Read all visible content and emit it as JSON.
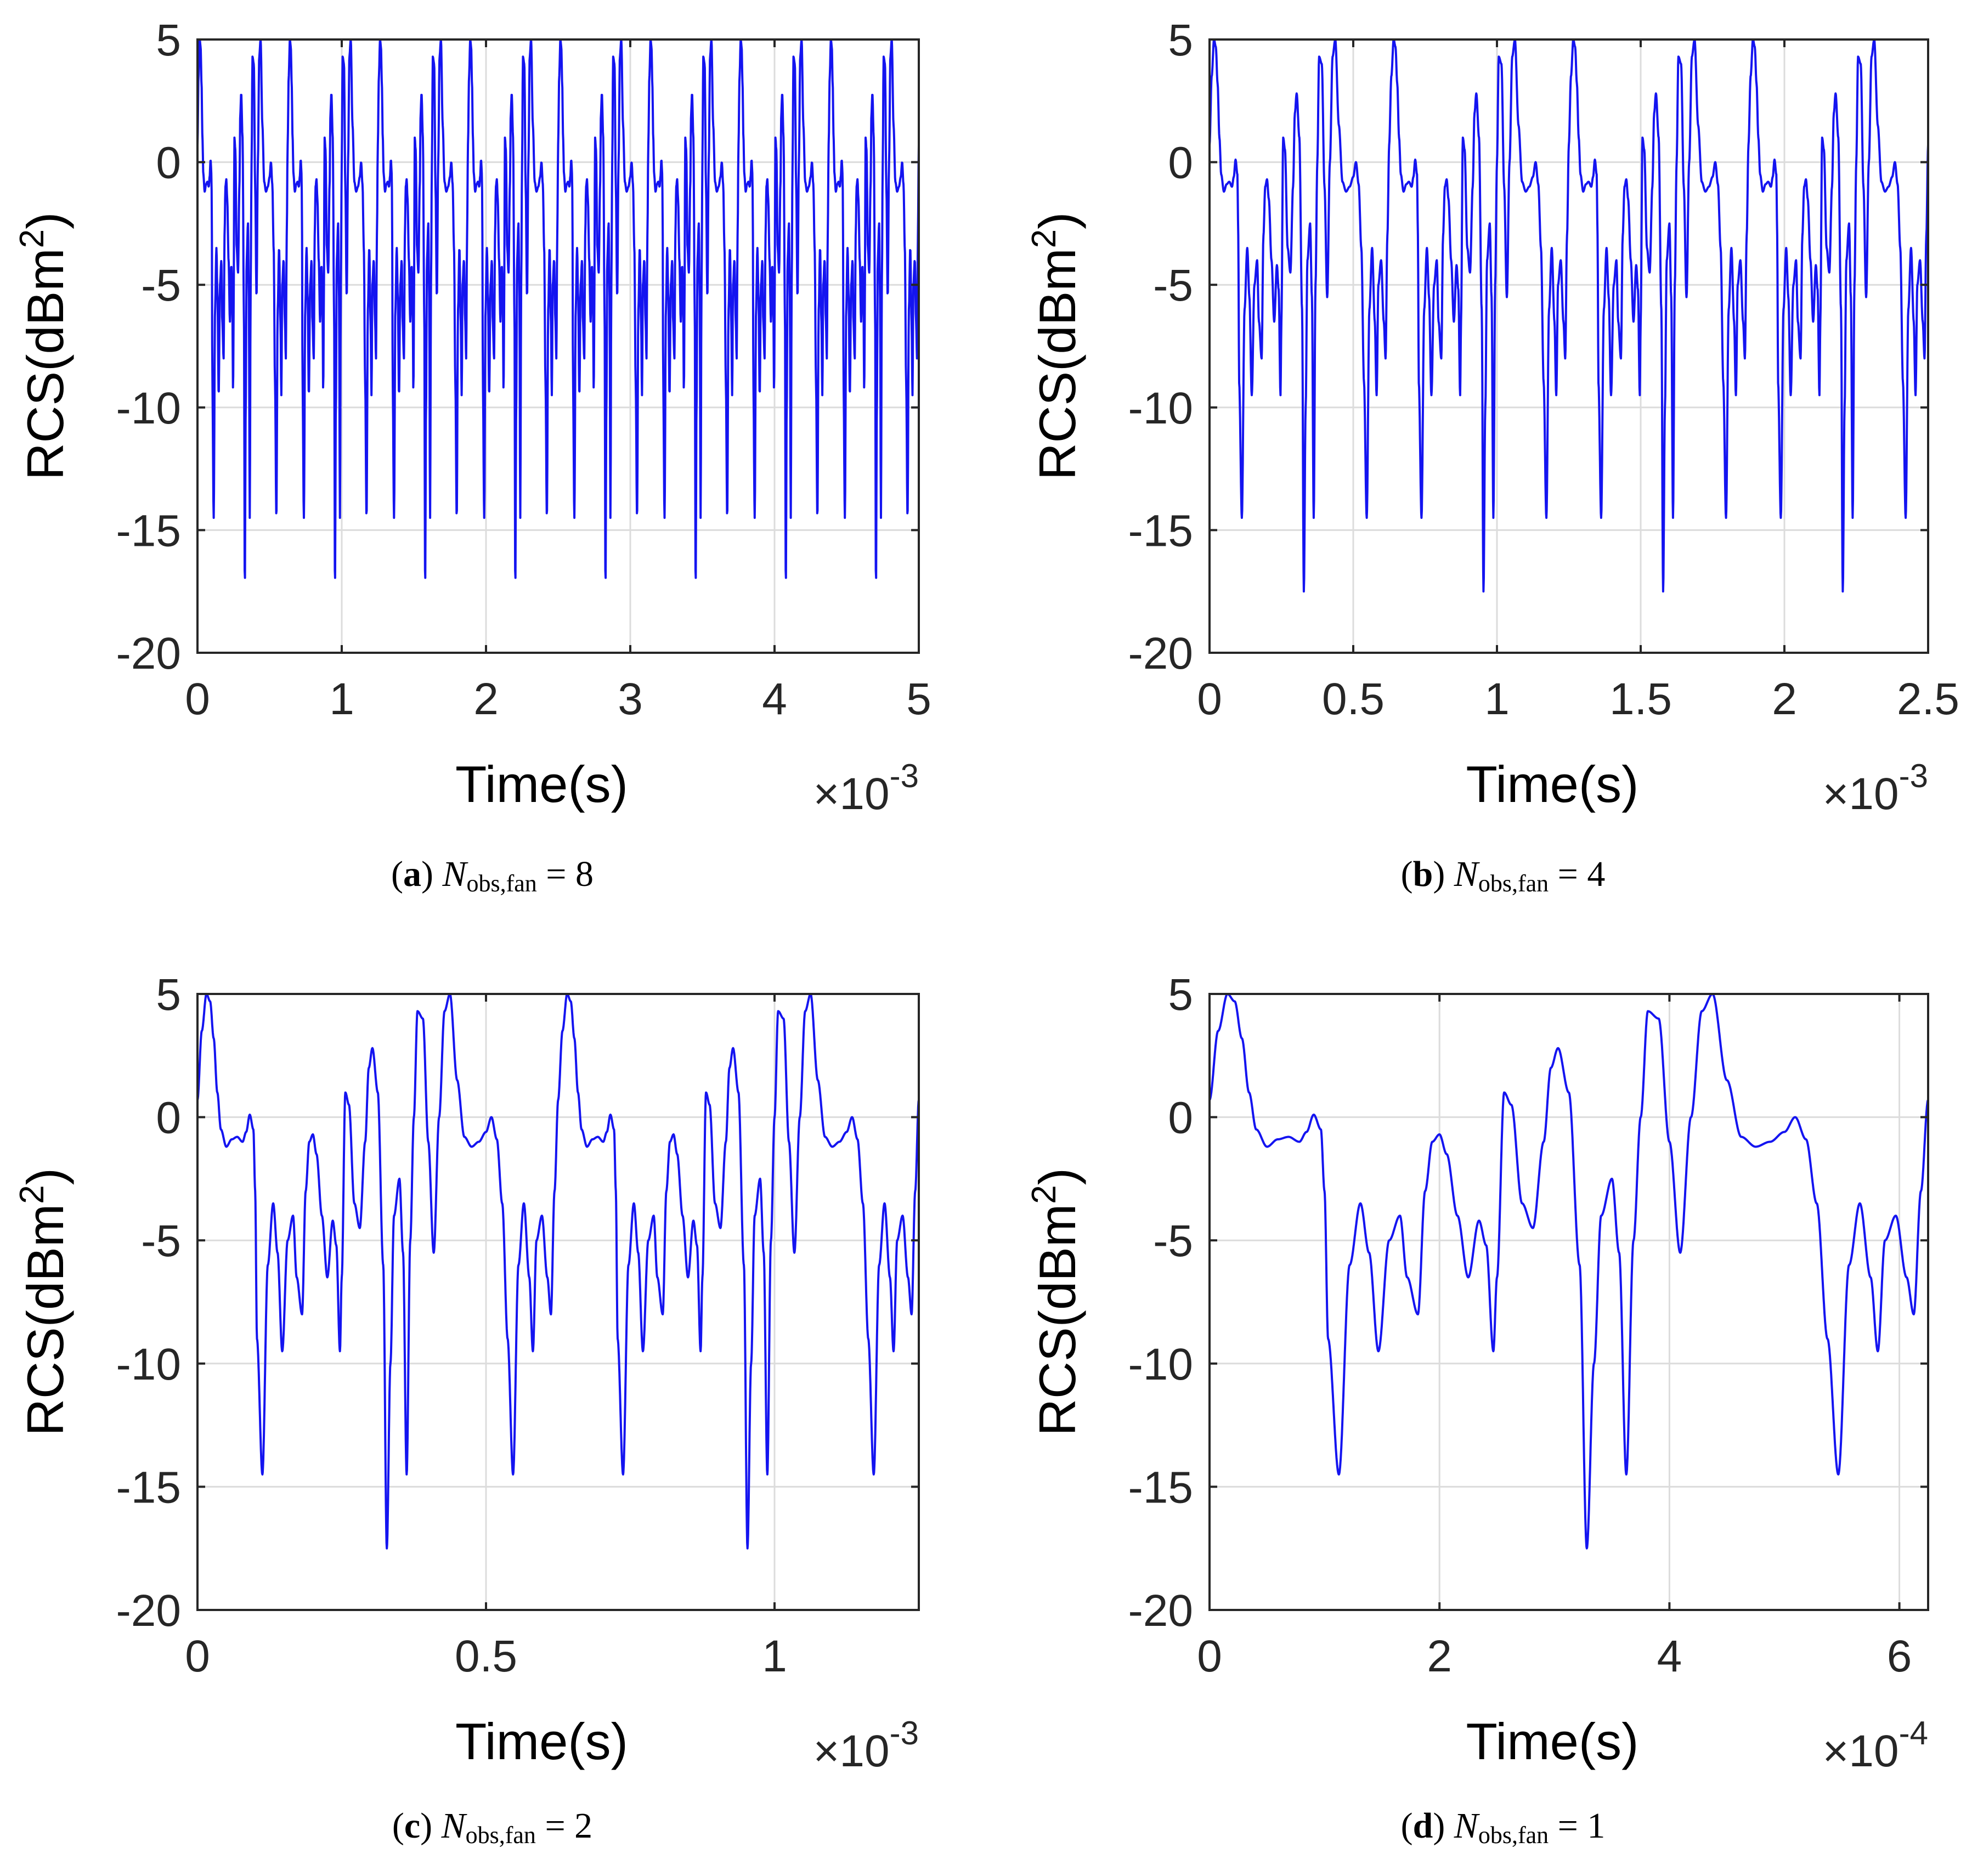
{
  "chart_data": [
    {
      "type": "line",
      "panel": "a",
      "caption": {
        "letter": "a",
        "var": "N",
        "sub": "obs,fan",
        "eq": " = 8"
      },
      "xlabel": "Time(s)",
      "ylabel": "RCS(dBm2)",
      "ylabel_parts": {
        "base": "RCS(dBm",
        "sup": "2",
        "end": ")"
      },
      "x_multiplier": {
        "base": "×10",
        "exp": "-3"
      },
      "xlim": [
        0,
        5
      ],
      "ylim": [
        -20,
        5
      ],
      "xticks": [
        0,
        1,
        2,
        3,
        4,
        5
      ],
      "xtick_labels": [
        "0",
        "1",
        "2",
        "3",
        "4",
        "5"
      ],
      "yticks": [
        5,
        0,
        -5,
        -10,
        -15,
        -20
      ],
      "ytick_labels": [
        "5",
        "0",
        "-5",
        "-10",
        "-15",
        "-20"
      ],
      "grid": true,
      "series": [
        {
          "period": 0.625,
          "color": "#1414f0"
        }
      ]
    },
    {
      "type": "line",
      "panel": "b",
      "caption": {
        "letter": "b",
        "var": "N",
        "sub": "obs,fan",
        "eq": " = 4"
      },
      "xlabel": "Time(s)",
      "ylabel": "RCS(dBm2)",
      "ylabel_parts": {
        "base": "RCS(dBm",
        "sup": "2",
        "end": ")"
      },
      "x_multiplier": {
        "base": "×10",
        "exp": "-3"
      },
      "xlim": [
        0,
        2.5
      ],
      "ylim": [
        -20,
        5
      ],
      "xticks": [
        0,
        0.5,
        1,
        1.5,
        2,
        2.5
      ],
      "xtick_labels": [
        "0",
        "0.5",
        "1",
        "1.5",
        "2",
        "2.5"
      ],
      "yticks": [
        5,
        0,
        -5,
        -10,
        -15,
        -20
      ],
      "ytick_labels": [
        "5",
        "0",
        "-5",
        "-10",
        "-15",
        "-20"
      ],
      "grid": true,
      "series": [
        {
          "period": 0.625,
          "color": "#1414f0"
        }
      ]
    },
    {
      "type": "line",
      "panel": "c",
      "caption": {
        "letter": "c",
        "var": "N",
        "sub": "obs,fan",
        "eq": " = 2"
      },
      "xlabel": "Time(s)",
      "ylabel": "RCS(dBm2)",
      "ylabel_parts": {
        "base": "RCS(dBm",
        "sup": "2",
        "end": ")"
      },
      "x_multiplier": {
        "base": "×10",
        "exp": "-3"
      },
      "xlim": [
        0,
        1.25
      ],
      "ylim": [
        -20,
        5
      ],
      "xticks": [
        0,
        0.5,
        1
      ],
      "xtick_labels": [
        "0",
        "0.5",
        "1"
      ],
      "yticks": [
        5,
        0,
        -5,
        -10,
        -15,
        -20
      ],
      "ytick_labels": [
        "5",
        "0",
        "-5",
        "-10",
        "-15",
        "-20"
      ],
      "grid": true,
      "series": [
        {
          "period": 0.625,
          "color": "#1414f0"
        }
      ]
    },
    {
      "type": "line",
      "panel": "d",
      "caption": {
        "letter": "d",
        "var": "N",
        "sub": "obs,fan",
        "eq": " = 1"
      },
      "xlabel": "Time(s)",
      "ylabel": "RCS(dBm2)",
      "ylabel_parts": {
        "base": "RCS(dBm",
        "sup": "2",
        "end": ")"
      },
      "x_multiplier": {
        "base": "×10",
        "exp": "-4"
      },
      "xlim": [
        0,
        6.25
      ],
      "ylim": [
        -20,
        5
      ],
      "xticks": [
        0,
        2,
        4,
        6
      ],
      "xtick_labels": [
        "0",
        "2",
        "4",
        "6"
      ],
      "yticks": [
        5,
        0,
        -5,
        -10,
        -15,
        -20
      ],
      "ytick_labels": [
        "5",
        "0",
        "-5",
        "-10",
        "-15",
        "-20"
      ],
      "grid": true,
      "series": [
        {
          "period": 6.25,
          "color": "#1414f0"
        }
      ]
    }
  ],
  "waveform": {
    "description_units": "one period of the RCS pattern; x as fraction of period, y in dBm2",
    "x": [
      0,
      0.012,
      0.025,
      0.035,
      0.045,
      0.055,
      0.065,
      0.08,
      0.095,
      0.11,
      0.125,
      0.135,
      0.145,
      0.155,
      0.16,
      0.165,
      0.18,
      0.195,
      0.21,
      0.222,
      0.235,
      0.25,
      0.265,
      0.275,
      0.29,
      0.3,
      0.31,
      0.32,
      0.33,
      0.345,
      0.36,
      0.375,
      0.385,
      0.395,
      0.4,
      0.41,
      0.42,
      0.435,
      0.45,
      0.465,
      0.475,
      0.485,
      0.5,
      0.515,
      0.525,
      0.535,
      0.545,
      0.56,
      0.57,
      0.58,
      0.59,
      0.6,
      0.61,
      0.625,
      0.64,
      0.655,
      0.67,
      0.685,
      0.7,
      0.72,
      0.74,
      0.76,
      0.78,
      0.8,
      0.815,
      0.83,
      0.845,
      0.86,
      0.875,
      0.89,
      0.905,
      0.92,
      0.93,
      0.94,
      0.955,
      0.97,
      0.98,
      0.99,
      1.0
    ],
    "y": [
      0.7,
      3.5,
      5.0,
      4.7,
      3.2,
      1.0,
      -0.5,
      -1.2,
      -0.9,
      -0.8,
      -1.0,
      -0.6,
      0.1,
      -0.5,
      -3.0,
      -9.0,
      -14.5,
      -6.0,
      -3.5,
      -5.5,
      -9.5,
      -5.0,
      -4.0,
      -6.5,
      -8.0,
      -3.0,
      -1.0,
      -0.7,
      -1.5,
      -4.0,
      -6.5,
      -4.2,
      -5.2,
      -9.5,
      -6.5,
      1.0,
      0.5,
      -3.5,
      -4.5,
      -1.0,
      2.0,
      2.8,
      1.0,
      -6.0,
      -17.5,
      -10.0,
      -4.0,
      -2.5,
      -5.5,
      -14.5,
      -5.0,
      0.0,
      4.3,
      4.0,
      -1.0,
      -5.5,
      0.0,
      4.3,
      5.0,
      1.5,
      -0.8,
      -1.2,
      -1.0,
      -0.6,
      0.0,
      -0.9,
      -3.5,
      -9.0,
      -14.5,
      -6.0,
      -3.5,
      -6.5,
      -9.5,
      -5.0,
      -4.0,
      -6.5,
      -8.0,
      -3.0,
      0.7
    ]
  }
}
